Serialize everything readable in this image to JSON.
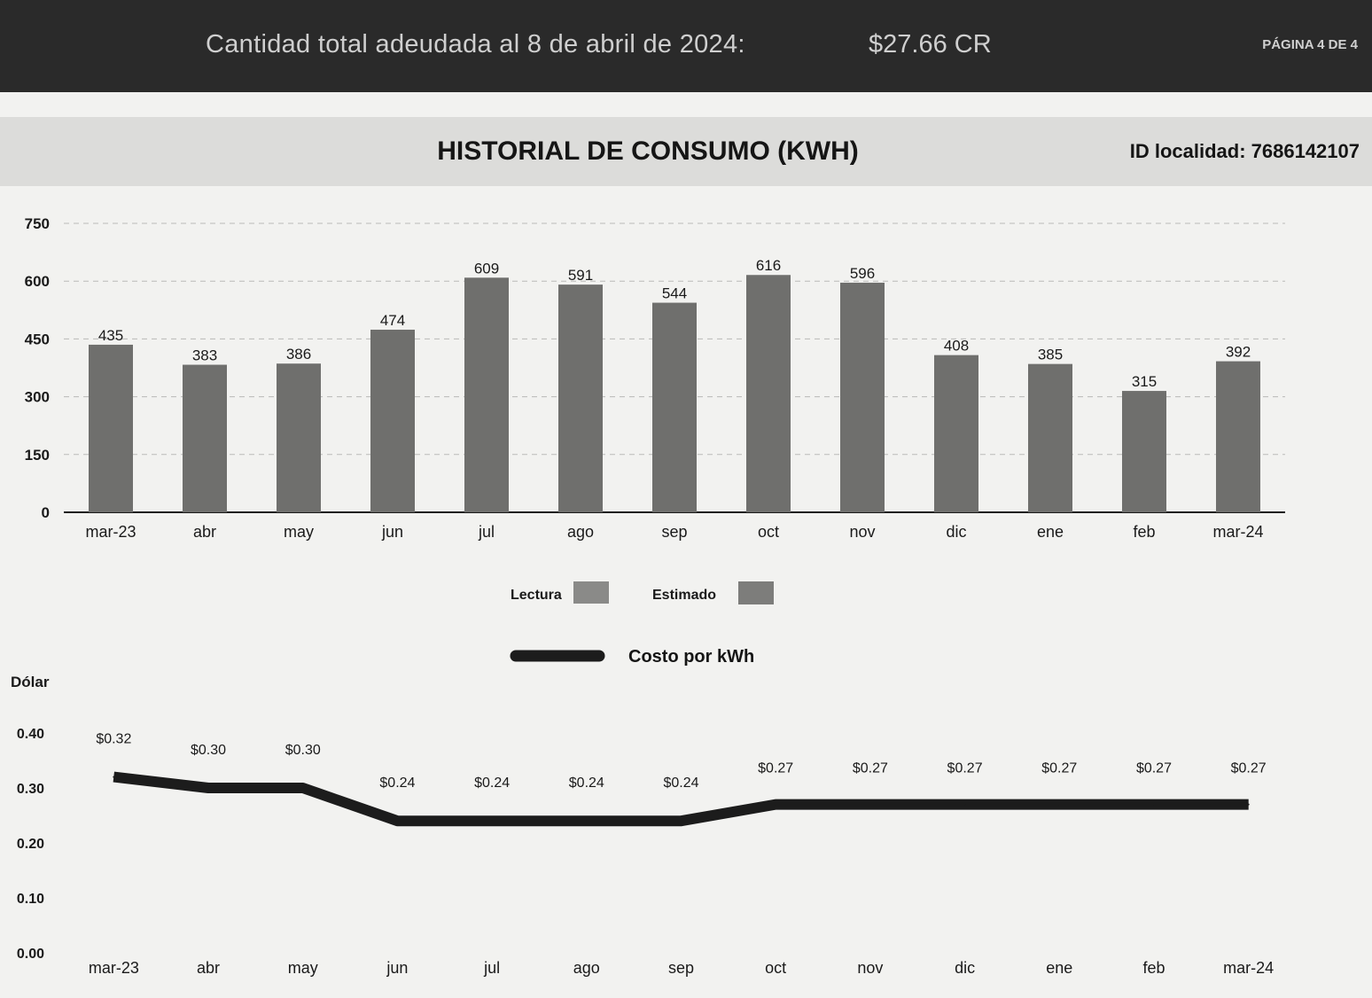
{
  "header": {
    "amount_label": "Cantidad total adeudada al 8 de abril de 2024:",
    "amount_value": "$27.66 CR",
    "page": "PÁGINA 4 DE 4"
  },
  "section": {
    "title": "HISTORIAL DE CONSUMO (KWH)",
    "location_id": "ID localidad: 7686142107"
  },
  "legend": {
    "lectura": "Lectura",
    "estimado": "Estimado",
    "cost_line": "Costo por kWh"
  },
  "chart_data": [
    {
      "type": "bar",
      "categories": [
        "mar-23",
        "abr",
        "may",
        "jun",
        "jul",
        "ago",
        "sep",
        "oct",
        "nov",
        "dic",
        "ene",
        "feb",
        "mar-24"
      ],
      "values": [
        435,
        383,
        386,
        474,
        609,
        591,
        544,
        616,
        596,
        408,
        385,
        315,
        392
      ],
      "data_labels": [
        "435",
        "383",
        "386",
        "474",
        "609",
        "591",
        "544",
        "616",
        "596",
        "408",
        "385",
        "315",
        "392"
      ],
      "yticks": [
        "0",
        "150",
        "300",
        "450",
        "600",
        "750"
      ],
      "ylim": [
        0,
        750
      ],
      "grid": true,
      "colors": {
        "bar": "#6f6f6d",
        "axis": "#1a1a1a"
      }
    },
    {
      "type": "line",
      "categories": [
        "mar-23",
        "abr",
        "may",
        "jun",
        "jul",
        "ago",
        "sep",
        "oct",
        "nov",
        "dic",
        "ene",
        "feb",
        "mar-24"
      ],
      "values": [
        0.32,
        0.3,
        0.3,
        0.24,
        0.24,
        0.24,
        0.24,
        0.27,
        0.27,
        0.27,
        0.27,
        0.27,
        0.27
      ],
      "data_labels": [
        "$0.32",
        "$0.30",
        "$0.30",
        "$0.24",
        "$0.24",
        "$0.24",
        "$0.24",
        "$0.27",
        "$0.27",
        "$0.27",
        "$0.27",
        "$0.27",
        "$0.27"
      ],
      "ylabel": "Dólar",
      "yticks": [
        "0.00",
        "0.10",
        "0.20",
        "0.30",
        "0.40"
      ],
      "ylim": [
        0,
        0.4
      ],
      "colors": {
        "line": "#1c1c1c"
      }
    }
  ]
}
